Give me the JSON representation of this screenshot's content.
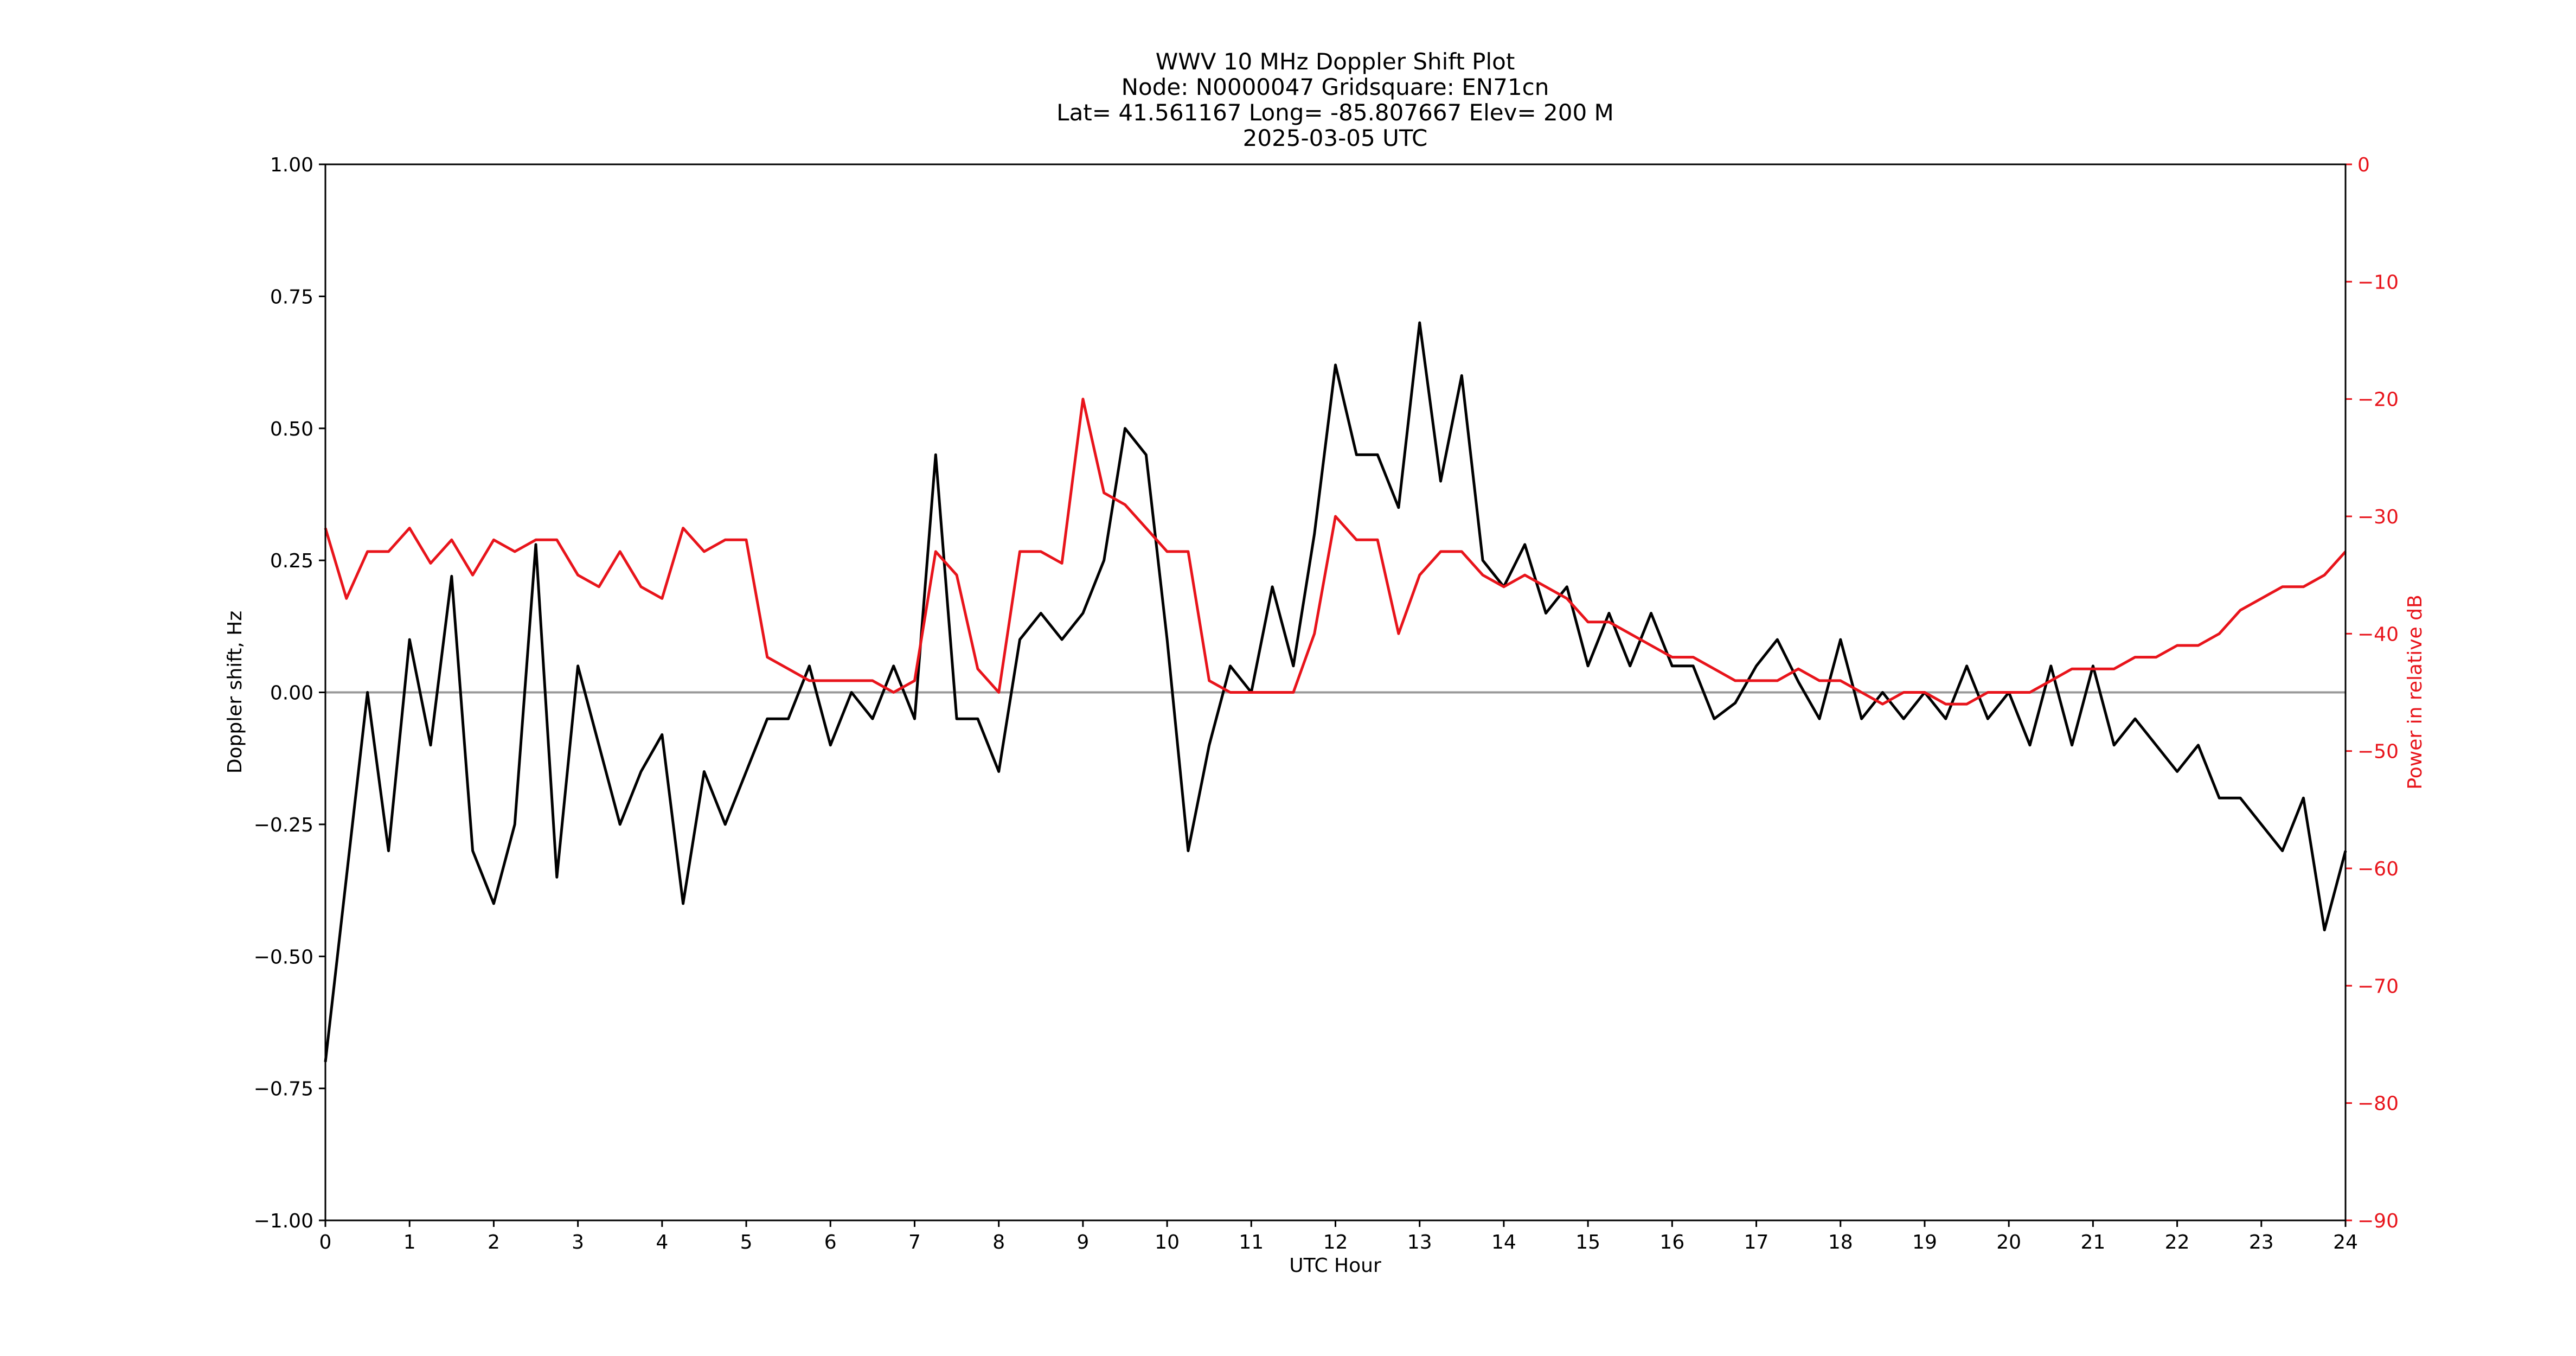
{
  "chart_data": {
    "type": "line",
    "title": "WWV 10 MHz Doppler Shift Plot",
    "subtitle": [
      "Node:  N0000047     Gridsquare:  EN71cn",
      "Lat= 41.561167    Long= -85.807667    Elev= 200 M",
      "2025-03-05  UTC"
    ],
    "x_label": "UTC Hour",
    "y_label": "Doppler shift, Hz",
    "y2_label": "Power in relative dB",
    "x": [
      0,
      0.25,
      0.5,
      0.75,
      1,
      1.25,
      1.5,
      1.75,
      2,
      2.25,
      2.5,
      2.75,
      3,
      3.25,
      3.5,
      3.75,
      4,
      4.25,
      4.5,
      4.75,
      5,
      5.25,
      5.5,
      5.75,
      6,
      6.25,
      6.5,
      6.75,
      7,
      7.25,
      7.5,
      7.75,
      8,
      8.25,
      8.5,
      8.75,
      9,
      9.25,
      9.5,
      9.75,
      10,
      10.25,
      10.5,
      10.75,
      11,
      11.25,
      11.5,
      11.75,
      12,
      12.25,
      12.5,
      12.75,
      13,
      13.25,
      13.5,
      13.75,
      14,
      14.25,
      14.5,
      14.75,
      15,
      15.25,
      15.5,
      15.75,
      16,
      16.25,
      16.5,
      16.75,
      17,
      17.25,
      17.5,
      17.75,
      18,
      18.25,
      18.5,
      18.75,
      19,
      19.25,
      19.5,
      19.75,
      20,
      20.25,
      20.5,
      20.75,
      21,
      21.25,
      21.5,
      21.75,
      22,
      22.25,
      22.5,
      22.75,
      23,
      23.25,
      23.5,
      23.75,
      24
    ],
    "series": [
      {
        "name": "Doppler shift",
        "color": "#000000",
        "axis": "y",
        "values": [
          -0.7,
          -0.35,
          0.0,
          -0.3,
          0.1,
          -0.1,
          0.22,
          -0.3,
          -0.4,
          -0.25,
          0.28,
          -0.35,
          0.05,
          -0.1,
          -0.25,
          -0.15,
          -0.08,
          -0.4,
          -0.15,
          -0.25,
          -0.15,
          -0.05,
          -0.05,
          0.05,
          -0.1,
          0.0,
          -0.05,
          0.05,
          -0.05,
          0.45,
          -0.05,
          -0.05,
          -0.15,
          0.1,
          0.15,
          0.1,
          0.15,
          0.25,
          0.5,
          0.45,
          0.1,
          -0.3,
          -0.1,
          0.05,
          0.0,
          0.2,
          0.05,
          0.3,
          0.62,
          0.45,
          0.45,
          0.35,
          0.7,
          0.4,
          0.6,
          0.25,
          0.2,
          0.28,
          0.15,
          0.2,
          0.05,
          0.15,
          0.05,
          0.15,
          0.05,
          0.05,
          -0.05,
          -0.02,
          0.05,
          0.1,
          0.02,
          -0.05,
          0.1,
          -0.05,
          0.0,
          -0.05,
          0.0,
          -0.05,
          0.05,
          -0.05,
          0.0,
          -0.1,
          0.05,
          -0.1,
          0.05,
          -0.1,
          -0.05,
          -0.1,
          -0.15,
          -0.1,
          -0.2,
          -0.2,
          -0.25,
          -0.3,
          -0.2,
          -0.45,
          -0.3
        ]
      },
      {
        "name": "Power",
        "color": "#e8141b",
        "axis": "y2",
        "values": [
          -31,
          -37,
          -33,
          -33,
          -31,
          -34,
          -32,
          -35,
          -32,
          -33,
          -32,
          -32,
          -35,
          -36,
          -33,
          -36,
          -37,
          -31,
          -33,
          -32,
          -32,
          -42,
          -43,
          -44,
          -44,
          -44,
          -44,
          -45,
          -44,
          -33,
          -35,
          -43,
          -45,
          -33,
          -33,
          -34,
          -20,
          -28,
          -29,
          -31,
          -33,
          -33,
          -44,
          -45,
          -45,
          -45,
          -45,
          -40,
          -30,
          -32,
          -32,
          -40,
          -35,
          -33,
          -33,
          -35,
          -36,
          -35,
          -36,
          -37,
          -39,
          -39,
          -40,
          -41,
          -42,
          -42,
          -43,
          -44,
          -44,
          -44,
          -43,
          -44,
          -44,
          -45,
          -46,
          -45,
          -45,
          -46,
          -46,
          -45,
          -45,
          -45,
          -44,
          -43,
          -43,
          -43,
          -42,
          -42,
          -41,
          -41,
          -40,
          -38,
          -37,
          -36,
          -36,
          -35,
          -33
        ]
      }
    ],
    "hline": 0,
    "hline_color": "#999999",
    "xlim": [
      0,
      24
    ],
    "xticks": [
      0,
      1,
      2,
      3,
      4,
      5,
      6,
      7,
      8,
      9,
      10,
      11,
      12,
      13,
      14,
      15,
      16,
      17,
      18,
      19,
      20,
      21,
      22,
      23,
      24
    ],
    "ylim": [
      -1,
      1
    ],
    "yticks": [
      {
        "value": -1,
        "label": "−1.00"
      },
      {
        "value": -0.75,
        "label": "−0.75"
      },
      {
        "value": -0.5,
        "label": "−0.50"
      },
      {
        "value": -0.25,
        "label": "−0.25"
      },
      {
        "value": 0,
        "label": "0.00"
      },
      {
        "value": 0.25,
        "label": "0.25"
      },
      {
        "value": 0.5,
        "label": "0.50"
      },
      {
        "value": 0.75,
        "label": "0.75"
      },
      {
        "value": 1,
        "label": "1.00"
      }
    ],
    "y2lim": [
      -90,
      0
    ],
    "y2ticks": [
      {
        "value": -90,
        "label": "−90"
      },
      {
        "value": -80,
        "label": "−80"
      },
      {
        "value": -70,
        "label": "−70"
      },
      {
        "value": -60,
        "label": "−60"
      },
      {
        "value": -50,
        "label": "−50"
      },
      {
        "value": -40,
        "label": "−40"
      },
      {
        "value": -30,
        "label": "−30"
      },
      {
        "value": -20,
        "label": "−20"
      },
      {
        "value": -10,
        "label": "−10"
      },
      0
    ],
    "y2_color": "#e8141b",
    "grid": false
  }
}
